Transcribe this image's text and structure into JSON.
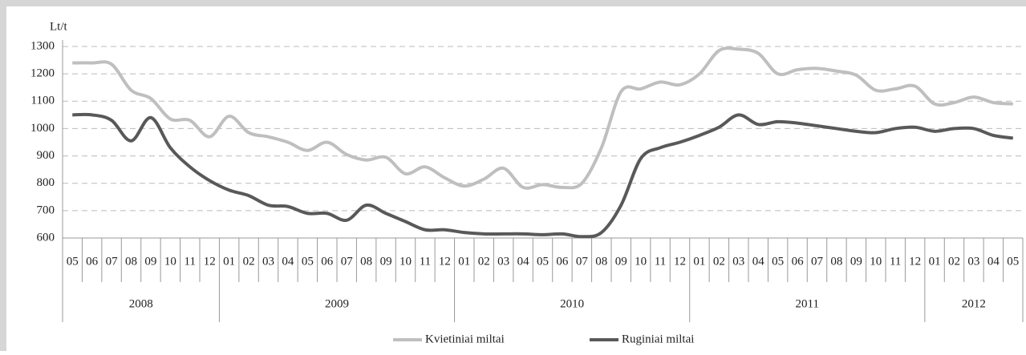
{
  "chart_data": {
    "type": "line",
    "y_label": "Lt/t",
    "categories": [
      "05",
      "06",
      "07",
      "08",
      "09",
      "10",
      "11",
      "12",
      "01",
      "02",
      "03",
      "04",
      "05",
      "06",
      "07",
      "08",
      "09",
      "10",
      "11",
      "12",
      "01",
      "02",
      "03",
      "04",
      "05",
      "06",
      "07",
      "08",
      "09",
      "10",
      "11",
      "12",
      "01",
      "02",
      "03",
      "04",
      "05",
      "06",
      "07",
      "08",
      "09",
      "10",
      "11",
      "12",
      "01",
      "02",
      "03",
      "04",
      "05"
    ],
    "groups": [
      "2008",
      "2009",
      "2010",
      "2011",
      "2012"
    ],
    "series": [
      {
        "name": "Kvietiniai miltai",
        "color": "#bfbfbf",
        "values": [
          1240,
          1240,
          1235,
          1140,
          1110,
          1035,
          1030,
          970,
          1045,
          985,
          970,
          950,
          920,
          950,
          905,
          885,
          895,
          835,
          860,
          820,
          790,
          815,
          855,
          785,
          795,
          785,
          800,
          930,
          1135,
          1145,
          1170,
          1160,
          1200,
          1285,
          1290,
          1275,
          1200,
          1215,
          1220,
          1210,
          1195,
          1140,
          1145,
          1155,
          1090,
          1095,
          1115,
          1095,
          1090
        ]
      },
      {
        "name": "Ruginiai miltai",
        "color": "#595959",
        "values": [
          1050,
          1050,
          1030,
          955,
          1040,
          930,
          860,
          810,
          775,
          755,
          720,
          715,
          690,
          690,
          665,
          720,
          690,
          660,
          630,
          630,
          620,
          615,
          615,
          615,
          612,
          615,
          605,
          620,
          720,
          890,
          930,
          950,
          975,
          1005,
          1050,
          1015,
          1025,
          1020,
          1010,
          1000,
          990,
          985,
          1000,
          1005,
          990,
          1000,
          1000,
          975,
          965
        ]
      }
    ],
    "ylim": [
      600,
      1300
    ],
    "yticks": [
      600,
      700,
      800,
      900,
      1000,
      1100,
      1200,
      1300
    ],
    "grid": true,
    "legend": "bottom"
  }
}
